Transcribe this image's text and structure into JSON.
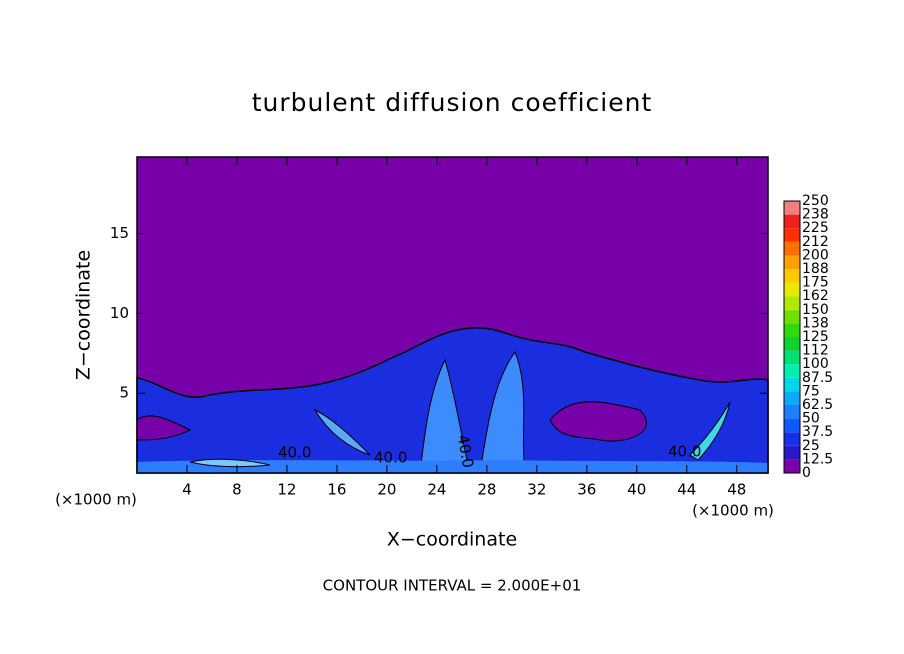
{
  "chart_data": {
    "type": "contour",
    "title": "turbulent diffusion coefficient",
    "xlabel": "X−coordinate",
    "ylabel": "Z−coordinate",
    "x_unit": "(×1000 m)",
    "x_unit_right": "(×1000 m)",
    "footer": "CONTOUR INTERVAL = 2.000E+01",
    "annotations": [
      "40.0",
      "40.0",
      "40.0",
      "40.0"
    ],
    "xlim": [
      0,
      50.5
    ],
    "ylim": [
      0,
      19.8
    ],
    "xticks": [
      4,
      8,
      12,
      16,
      20,
      24,
      28,
      32,
      36,
      40,
      44,
      48
    ],
    "yticks": [
      5,
      10,
      15
    ],
    "colorbar": {
      "levels": [
        0,
        12.5,
        25,
        37.5,
        50,
        62.5,
        75,
        87.5,
        100,
        {
          "value": 112.5,
          "label": "112"
        },
        125,
        {
          "value": 137.5,
          "label": "138"
        },
        150,
        {
          "value": 162.5,
          "label": "162"
        },
        175,
        {
          "value": 187.5,
          "label": "188"
        },
        200,
        {
          "value": 212.5,
          "label": "212"
        },
        225,
        {
          "value": 237.5,
          "label": "238"
        },
        250
      ],
      "colors": [
        "#7a00a8",
        "#2a18c8",
        "#1430e8",
        "#1058ff",
        "#1a80ff",
        "#10a8ff",
        "#00d8e8",
        "#00f0b0",
        "#00e070",
        "#10d030",
        "#30d810",
        "#70e000",
        "#b0e800",
        "#e8e800",
        "#ffc800",
        "#ffa000",
        "#ff7000",
        "#ff3000",
        "#f02020",
        "#f08080"
      ]
    }
  }
}
